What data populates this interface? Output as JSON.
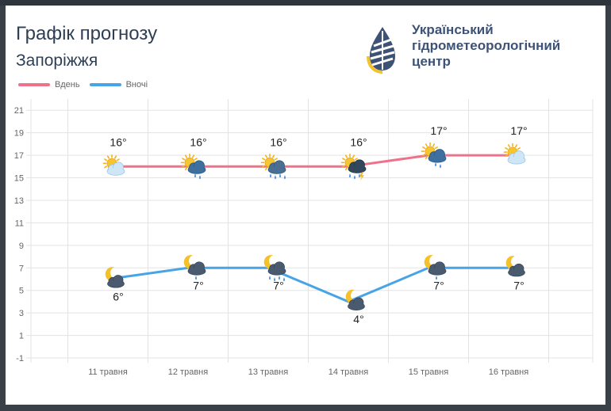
{
  "header": {
    "title": "Графік прогнозу",
    "city": "Запоріжжя",
    "org_lines": [
      "Український",
      "гідрометеорологічний",
      "центр"
    ]
  },
  "colors": {
    "day": "#f0718a",
    "night": "#47a4e6",
    "title": "#2e3f55",
    "org": "#3d5275",
    "logo_blue": "#3d5275",
    "logo_yellow": "#f3c32c"
  },
  "chart_data": {
    "type": "line",
    "categories": [
      "11 травня",
      "12 травня",
      "13 травня",
      "14 травня",
      "15 травня",
      "16 травня"
    ],
    "series": [
      {
        "name": "Вдень",
        "values": [
          16,
          16,
          16,
          16,
          17,
          17
        ],
        "labels": [
          "16°",
          "16°",
          "16°",
          "16°",
          "17°",
          "17°"
        ],
        "icons": [
          "partly-cloudy-icon",
          "partly-cloudy-rain-icon",
          "partly-cloudy-showers-icon",
          "thunderstorm-rain-icon",
          "partly-cloudy-rain-icon",
          "partly-cloudy-icon"
        ]
      },
      {
        "name": "Вночі",
        "values": [
          6,
          7,
          7,
          4,
          7,
          7
        ],
        "labels": [
          "6°",
          "7°",
          "7°",
          "4°",
          "7°",
          "7°"
        ],
        "icons": [
          "night-cloudy-icon",
          "night-cloudy-rain-icon",
          "night-cloudy-showers-icon",
          "night-cloudy-icon",
          "night-cloudy-rain-icon",
          "night-cloudy-icon"
        ]
      }
    ],
    "yticks": [
      -1,
      1,
      3,
      5,
      7,
      9,
      11,
      13,
      15,
      17,
      19,
      21
    ],
    "ylim": [
      -1,
      22
    ],
    "grid": true,
    "legend": "top-left"
  }
}
